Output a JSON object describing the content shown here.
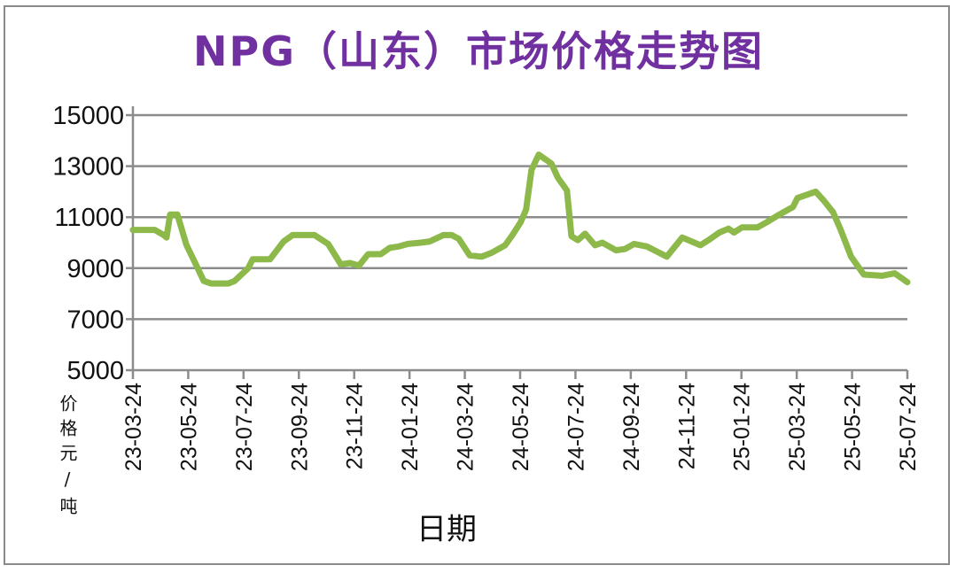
{
  "chart_data": {
    "type": "line",
    "title": "NPG（山东）市场价格走势图",
    "xlabel": "日期",
    "ylabel": "价格元/吨",
    "ylim": [
      5000,
      15000
    ],
    "yticks": [
      "5000",
      "7000",
      "9000",
      "11000",
      "13000",
      "15000"
    ],
    "xlim": [
      "2023-03-24",
      "2025-07-24"
    ],
    "xticks": [
      "23-03-24",
      "23-05-24",
      "23-07-24",
      "23-09-24",
      "23-11-24",
      "24-01-24",
      "24-03-24",
      "24-05-24",
      "24-07-24",
      "24-09-24",
      "24-11-24",
      "25-01-24",
      "25-03-24",
      "25-05-24",
      "25-07-24"
    ],
    "grid": true,
    "line_color": "#8db84a",
    "title_color": "#7030a0",
    "series": [
      {
        "x": [
          "2023-03-24",
          "2023-04-17",
          "2023-04-27",
          "2023-04-30",
          "2023-05-04",
          "2023-05-12",
          "2023-05-22",
          "2023-06-02",
          "2023-06-10",
          "2023-06-18",
          "2023-07-07",
          "2023-07-14",
          "2023-07-29",
          "2023-08-03",
          "2023-08-22",
          "2023-09-06",
          "2023-09-16",
          "2023-10-10",
          "2023-10-25",
          "2023-11-08",
          "2023-11-18",
          "2023-11-28",
          "2023-12-08",
          "2023-12-22",
          "2024-01-01",
          "2024-01-11",
          "2024-01-21",
          "2024-02-04",
          "2024-02-14",
          "2024-02-29",
          "2024-03-09",
          "2024-03-17",
          "2024-03-29",
          "2024-04-11",
          "2024-04-22",
          "2024-05-07",
          "2024-05-15",
          "2024-05-24",
          "2024-05-30",
          "2024-06-05",
          "2024-06-13",
          "2024-06-27",
          "2024-07-04",
          "2024-07-14",
          "2024-07-19",
          "2024-07-26",
          "2024-08-03",
          "2024-08-14",
          "2024-08-22",
          "2024-09-06",
          "2024-09-16",
          "2024-09-26",
          "2024-10-10",
          "2024-11-01",
          "2024-11-18",
          "2024-12-08",
          "2024-12-17",
          "2024-12-29",
          "2025-01-08",
          "2025-01-14",
          "2025-01-23",
          "2025-02-09",
          "2025-02-19",
          "2025-03-05",
          "2025-03-20",
          "2025-03-25",
          "2025-04-14",
          "2025-04-23",
          "2025-05-03",
          "2025-05-11",
          "2025-05-23",
          "2025-06-06",
          "2025-06-26",
          "2025-07-10",
          "2025-07-24"
        ],
        "y": [
          10500,
          10500,
          10300,
          10200,
          11100,
          11100,
          9900,
          9100,
          8500,
          8400,
          8400,
          8500,
          9000,
          9350,
          9350,
          10050,
          10300,
          10300,
          9950,
          9150,
          9200,
          9100,
          9550,
          9550,
          9800,
          9850,
          9950,
          10000,
          10050,
          10300,
          10300,
          10150,
          9500,
          9450,
          9600,
          9900,
          10300,
          10800,
          11300,
          12850,
          13450,
          13100,
          12550,
          12050,
          10250,
          10100,
          10350,
          9900,
          10000,
          9700,
          9750,
          9950,
          9850,
          9450,
          10200,
          9900,
          10100,
          10400,
          10550,
          10400,
          10600,
          10600,
          10800,
          11100,
          11400,
          11750,
          12000,
          11650,
          11200,
          10550,
          9450,
          8750,
          8700,
          8800,
          8450
        ]
      }
    ]
  }
}
